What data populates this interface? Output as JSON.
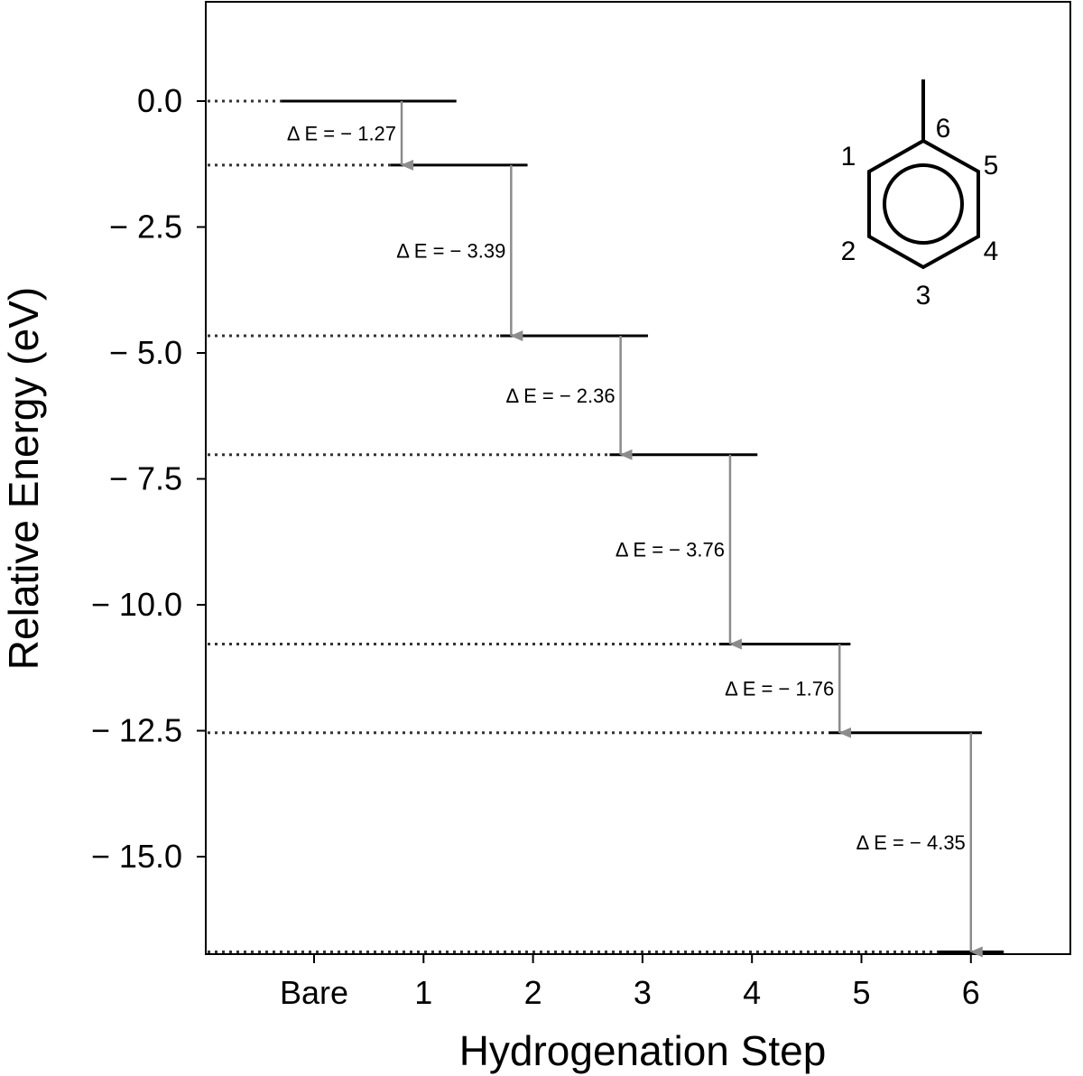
{
  "chart_data": {
    "type": "energy-level-diagram",
    "xlabel": "Hydrogenation Step",
    "ylabel": "Relative Energy (eV)",
    "categories": [
      "Bare",
      "1",
      "2",
      "3",
      "4",
      "5",
      "6"
    ],
    "ylim": [
      -17.1,
      2.0
    ],
    "yticks": [
      0.0,
      -2.5,
      -5.0,
      -7.5,
      -10.0,
      -12.5,
      -15.0
    ],
    "ytick_labels": [
      "0.0",
      "− 2.5",
      "− 5.0",
      "− 7.5",
      "− 10.0",
      "− 12.5",
      "− 15.0"
    ],
    "levels": [
      {
        "x_start": -0.3,
        "x_end": 1.3,
        "energy": 0.0
      },
      {
        "x_start": 0.7,
        "x_end": 1.95,
        "energy": -1.27
      },
      {
        "x_start": 1.7,
        "x_end": 3.05,
        "energy": -4.66
      },
      {
        "x_start": 2.7,
        "x_end": 4.05,
        "energy": -7.02
      },
      {
        "x_start": 3.7,
        "x_end": 4.9,
        "energy": -10.78
      },
      {
        "x_start": 4.7,
        "x_end": 6.1,
        "energy": -12.54
      },
      {
        "x_start": 5.7,
        "x_end": 6.3,
        "energy": -16.89
      }
    ],
    "transitions": [
      {
        "x": 0.8,
        "from": 0.0,
        "to": -1.27,
        "label": "Δ E = − 1.27"
      },
      {
        "x": 1.8,
        "from": -1.27,
        "to": -4.66,
        "label": "Δ E = − 3.39"
      },
      {
        "x": 2.8,
        "from": -4.66,
        "to": -7.02,
        "label": "Δ E = − 2.36"
      },
      {
        "x": 3.8,
        "from": -7.02,
        "to": -10.78,
        "label": "Δ E = − 3.76"
      },
      {
        "x": 4.8,
        "from": -10.78,
        "to": -12.54,
        "label": "Δ E = − 1.76"
      },
      {
        "x": 6.0,
        "from": -12.54,
        "to": -16.89,
        "label": "Δ E = − 4.35"
      }
    ],
    "inset_molecule": {
      "type": "methyl-substituted benzene ring",
      "atom_labels": [
        "1",
        "2",
        "3",
        "4",
        "5",
        "6"
      ]
    },
    "grid": false,
    "legend": "none"
  },
  "colors": {
    "level": "#000000",
    "arrow": "#8c8c8c",
    "dotted": "#333333",
    "axis": "#000000"
  }
}
